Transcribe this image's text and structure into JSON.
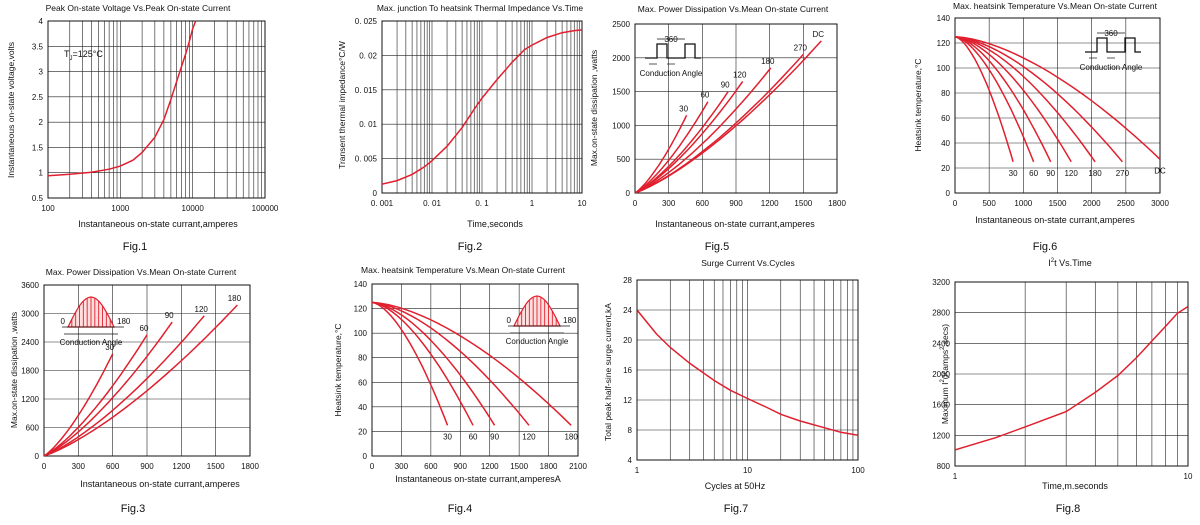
{
  "page": {
    "background": "#ffffff"
  },
  "colors": {
    "curve": "#e0202e",
    "axis": "#111111",
    "grid": "#222222",
    "fill_hatch": "#e0202e"
  },
  "chart_data": [
    {
      "id": "fig1",
      "caption": "Fig.1",
      "type": "line",
      "title": "Peak On-state Voltage Vs.Peak On-state Current",
      "xlabel": "Instantaneous on-state currant,amperes",
      "ylabel": "Instantaneous on-state voltage,volts",
      "xscale": "log",
      "xlim": [
        100,
        100000
      ],
      "ylim": [
        0.5,
        4
      ],
      "xticks": [
        100,
        1000,
        10000,
        100000
      ],
      "xtick_labels": [
        "100",
        "1000",
        "10000",
        "100000"
      ],
      "yticks": [
        0.5,
        1,
        1.5,
        2,
        2.5,
        3,
        3.5,
        4
      ],
      "ytick_labels": [
        "0.5",
        "1",
        "1.5",
        "2",
        "2.5",
        "3",
        "3.5",
        "4"
      ],
      "annotation": {
        "text_main": "T",
        "text_sub": "J",
        "text_rest": "=125°C",
        "position": "top-left"
      },
      "series": [
        {
          "name": "Tj=125°C",
          "x": [
            100,
            200,
            400,
            700,
            1000,
            1500,
            2000,
            3000,
            4000,
            5000,
            6000,
            7000,
            8000,
            9000,
            10000,
            11000
          ],
          "y": [
            0.94,
            0.97,
            1.01,
            1.07,
            1.13,
            1.25,
            1.4,
            1.7,
            2.05,
            2.45,
            2.8,
            3.1,
            3.35,
            3.6,
            3.85,
            4.0
          ]
        }
      ]
    },
    {
      "id": "fig2",
      "caption": "Fig.2",
      "type": "line",
      "title": "Max. junction To heatsink Thermal Impedance Vs.Time",
      "xlabel": "Time,seconds",
      "ylabel": "Transent thermal impedance°C/W",
      "xscale": "log",
      "xlim": [
        0.001,
        10
      ],
      "ylim": [
        0,
        0.025
      ],
      "xticks": [
        0.001,
        0.01,
        0.1,
        1,
        10
      ],
      "xtick_labels": [
        "0. 001",
        "0. 01",
        "0. 1",
        "1",
        "10"
      ],
      "yticks": [
        0,
        0.005,
        0.01,
        0.015,
        0.02,
        0.025
      ],
      "ytick_labels": [
        "0",
        "0. 005",
        "0. 01",
        "0. 015",
        "0. 02",
        "0. 025"
      ],
      "series": [
        {
          "name": "Zth",
          "x": [
            0.001,
            0.002,
            0.004,
            0.007,
            0.01,
            0.02,
            0.04,
            0.07,
            0.1,
            0.2,
            0.4,
            0.7,
            1,
            2,
            4,
            7,
            10
          ],
          "y": [
            0.0013,
            0.0018,
            0.0027,
            0.0038,
            0.0047,
            0.0068,
            0.0095,
            0.0122,
            0.0138,
            0.0165,
            0.019,
            0.0208,
            0.0215,
            0.0226,
            0.0233,
            0.0236,
            0.0237
          ]
        }
      ]
    },
    {
      "id": "fig5",
      "caption": "Fig.5",
      "type": "line",
      "title": "Max. Power Dissipation Vs.Mean On-state Current",
      "xlabel": "Instantaneous on-state currant,amperes",
      "ylabel": "Max.on-state dissipation ,watts",
      "xlim": [
        0,
        1800
      ],
      "ylim": [
        0,
        2500
      ],
      "xticks": [
        0,
        300,
        600,
        900,
        1200,
        1500,
        1800
      ],
      "xtick_labels": [
        "0",
        "300",
        "600",
        "900",
        "1200",
        "1500",
        "1800"
      ],
      "yticks": [
        0,
        500,
        1000,
        1500,
        2000,
        2500
      ],
      "ytick_labels": [
        "0",
        "500",
        "1000",
        "1500",
        "2000",
        "2500"
      ],
      "inset": {
        "type": "square-wave",
        "label_top": "360",
        "label_bottom": "Conduction Angle"
      },
      "series": [
        {
          "name": "30",
          "label": "30",
          "x": [
            0,
            460
          ],
          "y": [
            0,
            1150
          ],
          "curv": 0.3
        },
        {
          "name": "60",
          "label": "60",
          "x": [
            0,
            650
          ],
          "y": [
            0,
            1350
          ],
          "curv": 0.3
        },
        {
          "name": "90",
          "label": "90",
          "x": [
            0,
            830
          ],
          "y": [
            0,
            1500
          ],
          "curv": 0.3
        },
        {
          "name": "120",
          "label": "120",
          "x": [
            0,
            960
          ],
          "y": [
            0,
            1650
          ],
          "curv": 0.3
        },
        {
          "name": "180",
          "label": "180",
          "x": [
            0,
            1210
          ],
          "y": [
            0,
            1850
          ],
          "curv": 0.3
        },
        {
          "name": "270",
          "label": "270",
          "x": [
            0,
            1500
          ],
          "y": [
            0,
            2050
          ],
          "curv": 0.3
        },
        {
          "name": "DC",
          "label": "DC",
          "x": [
            0,
            1660
          ],
          "y": [
            0,
            2250
          ],
          "curv": 0.3
        }
      ]
    },
    {
      "id": "fig6",
      "caption": "Fig.6",
      "type": "line",
      "title": "Max. heatsink Temperature Vs.Mean On-state Current",
      "xlabel": "Instantaneous on-state currant,amperes",
      "ylabel": "Heatsink temperature,°C",
      "xlim": [
        0,
        3000
      ],
      "ylim": [
        0,
        140
      ],
      "xticks": [
        0,
        500,
        1000,
        1500,
        2000,
        2500,
        3000
      ],
      "xtick_labels": [
        "0",
        "500",
        "1000",
        "1500",
        "2000",
        "2500",
        "3000"
      ],
      "yticks": [
        0,
        20,
        40,
        60,
        80,
        100,
        120,
        140
      ],
      "ytick_labels": [
        "0",
        "20",
        "40",
        "60",
        "80",
        "100",
        "120",
        "140"
      ],
      "inset": {
        "type": "square-wave",
        "label_top": "360",
        "label_bottom": "Conduction Angle"
      },
      "series": [
        {
          "name": "30",
          "label": "30",
          "x": [
            0,
            850
          ],
          "y": [
            125,
            25
          ],
          "curv": 0.5
        },
        {
          "name": "60",
          "label": "60",
          "x": [
            0,
            1150
          ],
          "y": [
            125,
            25
          ],
          "curv": 0.5
        },
        {
          "name": "90",
          "label": "90",
          "x": [
            0,
            1400
          ],
          "y": [
            125,
            25
          ],
          "curv": 0.5
        },
        {
          "name": "120",
          "label": "120",
          "x": [
            0,
            1700
          ],
          "y": [
            125,
            25
          ],
          "curv": 0.5
        },
        {
          "name": "180",
          "label": "180",
          "x": [
            0,
            2050
          ],
          "y": [
            125,
            25
          ],
          "curv": 0.5
        },
        {
          "name": "270",
          "label": "270",
          "x": [
            0,
            2450
          ],
          "y": [
            125,
            25
          ],
          "curv": 0.5
        },
        {
          "name": "DC",
          "label": "DC",
          "x": [
            0,
            3000
          ],
          "y": [
            125,
            27
          ],
          "curv": 0.5
        }
      ]
    },
    {
      "id": "fig3",
      "caption": "Fig.3",
      "type": "line",
      "title": "Max. Power Dissipation Vs.Mean On-state Current",
      "xlabel": "Instantaneous on-state currant,amperes",
      "ylabel": "Max.on-state dissipation ,watts",
      "xlim": [
        0,
        1800
      ],
      "ylim": [
        0,
        3600
      ],
      "xticks": [
        0,
        300,
        600,
        900,
        1200,
        1500,
        1800
      ],
      "xtick_labels": [
        "0",
        "300",
        "600",
        "900",
        "1200",
        "1500",
        "1800"
      ],
      "yticks": [
        0,
        600,
        1200,
        1800,
        2400,
        3000,
        3600
      ],
      "ytick_labels": [
        "0",
        "600",
        "1200",
        "1800",
        "2400",
        "3000",
        "3600"
      ],
      "inset": {
        "type": "half-sine",
        "label_left": "0",
        "label_right": "180",
        "label_bottom": "Conduction Angle"
      },
      "series": [
        {
          "name": "30",
          "label": "30",
          "x": [
            0,
            600
          ],
          "y": [
            0,
            2150
          ],
          "curv": 0.3
        },
        {
          "name": "60",
          "label": "60",
          "x": [
            0,
            900
          ],
          "y": [
            0,
            2550
          ],
          "curv": 0.3
        },
        {
          "name": "90",
          "label": "90",
          "x": [
            0,
            1120
          ],
          "y": [
            0,
            2820
          ],
          "curv": 0.3
        },
        {
          "name": "120",
          "label": "120",
          "x": [
            0,
            1400
          ],
          "y": [
            0,
            2950
          ],
          "curv": 0.3
        },
        {
          "name": "180",
          "label": "180",
          "x": [
            0,
            1690
          ],
          "y": [
            0,
            3180
          ],
          "curv": 0.3
        }
      ]
    },
    {
      "id": "fig4",
      "caption": "Fig.4",
      "type": "line",
      "title": "Max. heatsink Temperature Vs.Mean On-state Current",
      "xlabel": "Instantaneous on-state currant,amperesA",
      "ylabel": "Heatsink temperature,°C",
      "xlim": [
        0,
        2100
      ],
      "ylim": [
        0,
        140
      ],
      "xticks": [
        0,
        300,
        600,
        900,
        1200,
        1500,
        1800,
        2100
      ],
      "xtick_labels": [
        "0",
        "300",
        "600",
        "900",
        "1200",
        "1500",
        "1800",
        "2100"
      ],
      "yticks": [
        0,
        20,
        40,
        60,
        80,
        100,
        120,
        140
      ],
      "ytick_labels": [
        "0",
        "20",
        "40",
        "60",
        "80",
        "100",
        "120",
        "140"
      ],
      "inset": {
        "type": "half-sine",
        "label_left": "0",
        "label_right": "180",
        "label_bottom": "Conduction Angle"
      },
      "series": [
        {
          "name": "30",
          "label": "30",
          "x": [
            0,
            770
          ],
          "y": [
            125,
            25
          ],
          "curv": 0.5
        },
        {
          "name": "60",
          "label": "60",
          "x": [
            0,
            1030
          ],
          "y": [
            125,
            25
          ],
          "curv": 0.5
        },
        {
          "name": "90",
          "label": "90",
          "x": [
            0,
            1250
          ],
          "y": [
            125,
            25
          ],
          "curv": 0.5
        },
        {
          "name": "120",
          "label": "120",
          "x": [
            0,
            1600
          ],
          "y": [
            125,
            25
          ],
          "curv": 0.5
        },
        {
          "name": "180",
          "label": "180",
          "x": [
            0,
            2030
          ],
          "y": [
            125,
            25
          ],
          "curv": 0.5
        }
      ]
    },
    {
      "id": "fig7",
      "caption": "Fig.7",
      "type": "line",
      "title": "Surge Current Vs.Cycles",
      "xlabel": "Cycles at 50Hz",
      "ylabel": "Total peak half-sine surge current,kA",
      "xscale": "log",
      "xlim": [
        1,
        100
      ],
      "ylim": [
        4,
        28
      ],
      "xticks": [
        1,
        10,
        100
      ],
      "xtick_labels": [
        "1",
        "10",
        "100"
      ],
      "yticks": [
        4,
        8,
        12,
        16,
        20,
        24,
        28
      ],
      "ytick_labels": [
        "4",
        "8",
        "12",
        "16",
        "20",
        "24",
        "28"
      ],
      "series": [
        {
          "name": "Surge",
          "x": [
            1,
            1.5,
            2,
            3,
            5,
            7,
            10,
            15,
            20,
            30,
            50,
            70,
            100
          ],
          "y": [
            24,
            20.8,
            19,
            16.9,
            14.6,
            13.3,
            12.2,
            11,
            10.1,
            9.2,
            8.3,
            7.7,
            7.3
          ]
        }
      ]
    },
    {
      "id": "fig8",
      "caption": "Fig.8",
      "type": "line",
      "title_main": "I",
      "title_sup": "2",
      "title_rest": "t  Vs.Time",
      "xlabel": "Time,m.seconds",
      "ylabel_main": "Maximum I",
      "ylabel_sup": "2",
      "ylabel_mid": "(Kamps",
      "ylabel_sup2": "2",
      "ylabel_rest": ".secs)",
      "xscale": "log",
      "xlim": [
        1,
        10
      ],
      "ylim": [
        800,
        3200
      ],
      "xticks": [
        1,
        10
      ],
      "xtick_labels": [
        "1",
        "10"
      ],
      "yticks": [
        800,
        1200,
        1600,
        2000,
        2400,
        2800,
        3200
      ],
      "ytick_labels": [
        "800",
        "1200",
        "1600",
        "2000",
        "2400",
        "2800",
        "3200"
      ],
      "series": [
        {
          "name": "I2t",
          "x": [
            1,
            1.5,
            2,
            3,
            4,
            5,
            6,
            7,
            8,
            9,
            10
          ],
          "y": [
            1010,
            1170,
            1310,
            1510,
            1760,
            1980,
            2210,
            2430,
            2620,
            2790,
            2880
          ]
        }
      ]
    }
  ]
}
